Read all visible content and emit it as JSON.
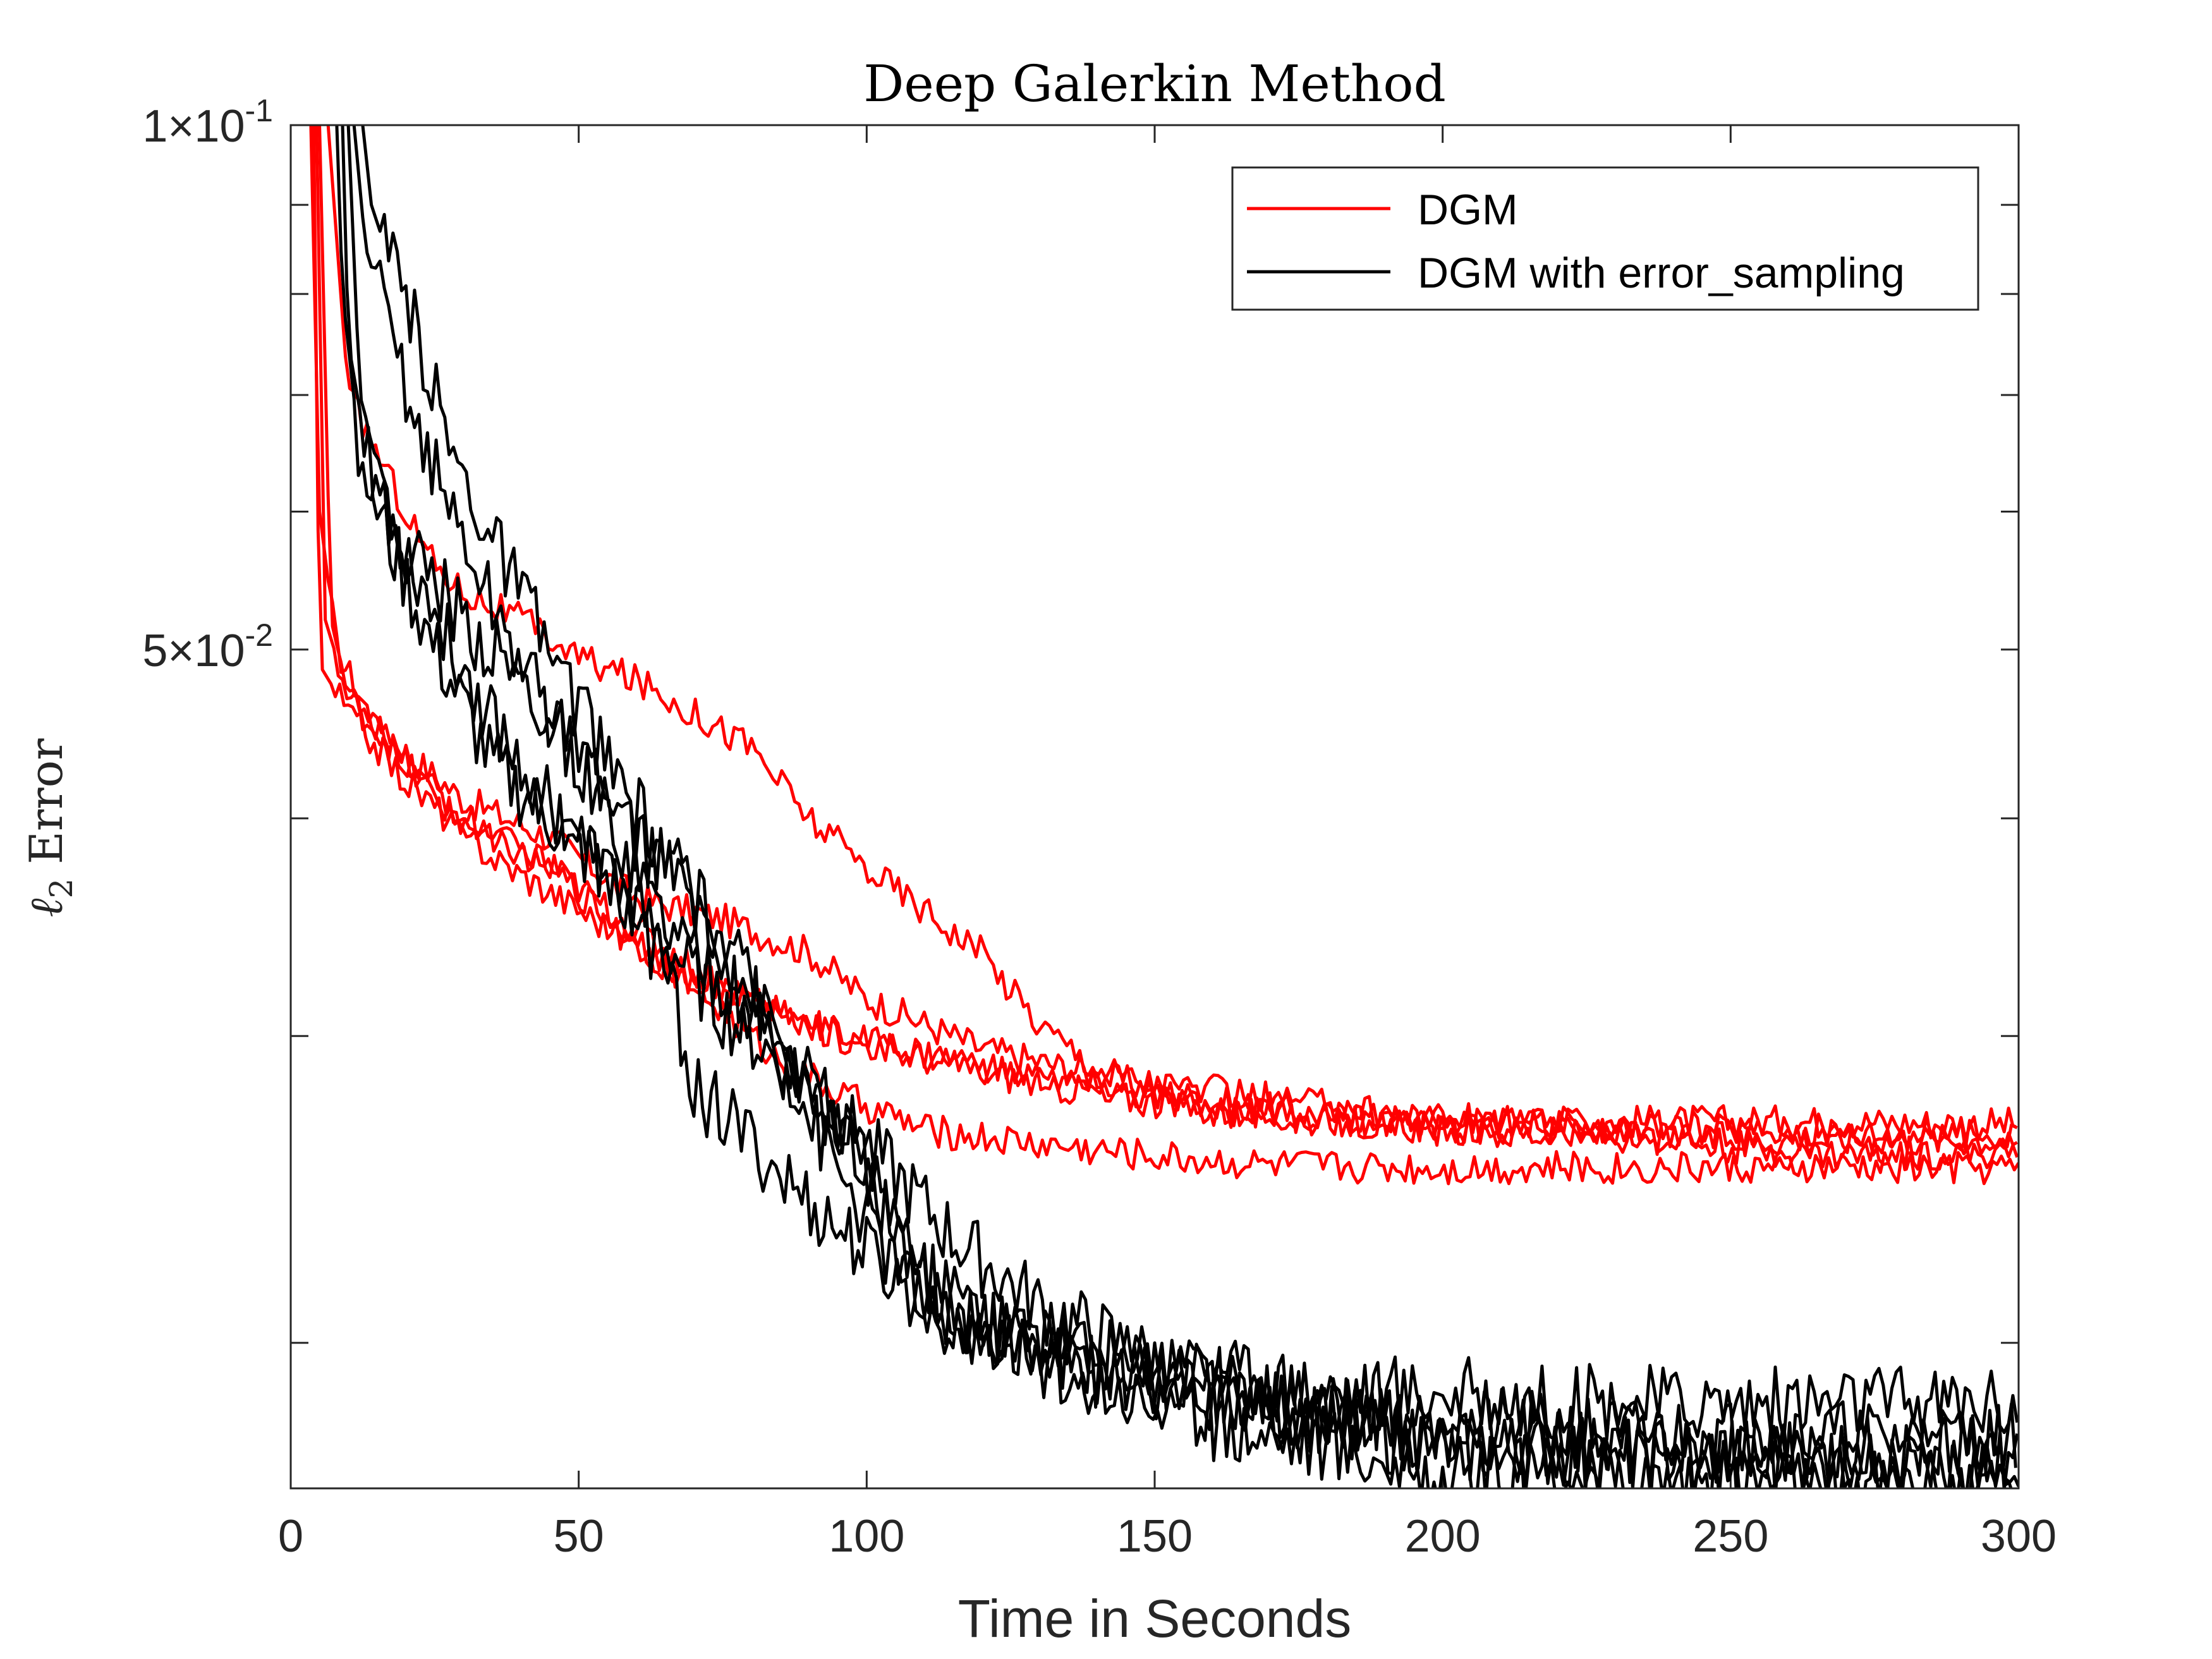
{
  "chart_data": {
    "type": "line",
    "title": "Deep Galerkin Method",
    "xlabel": "Time in Seconds",
    "ylabel_symbol": "ℓ",
    "ylabel_subscript": "2",
    "ylabel_word": "Error",
    "xlim": [
      0,
      300
    ],
    "ylim": [
      0.0165,
      0.1
    ],
    "yscale": "log",
    "xticks": [
      0,
      50,
      100,
      150,
      200,
      250,
      300
    ],
    "xtick_labels": [
      "0",
      "50",
      "100",
      "150",
      "200",
      "250",
      "300"
    ],
    "yticks_labeled": [
      {
        "value": 0.1,
        "mantissa": "1",
        "times": "×",
        "base": "10",
        "exp": "-1"
      },
      {
        "value": 0.05,
        "mantissa": "5",
        "times": "×",
        "base": "10",
        "exp": "-2"
      }
    ],
    "yticks_minor": [
      0.09,
      0.08,
      0.07,
      0.06,
      0.04,
      0.03,
      0.02
    ],
    "grid": false,
    "legend": {
      "position": "top-right",
      "entries": [
        {
          "label": "DGM",
          "color": "#ff0000"
        },
        {
          "label": "DGM with error_sampling",
          "color": "#000000"
        }
      ]
    },
    "series": [
      {
        "group": "DGM",
        "color": "#ff0000",
        "points": [
          [
            3.5,
            0.1
          ],
          [
            5,
            0.06
          ],
          [
            8,
            0.05
          ],
          [
            15,
            0.045
          ],
          [
            30,
            0.041
          ],
          [
            45,
            0.039
          ],
          [
            60,
            0.036
          ],
          [
            75,
            0.035
          ],
          [
            90,
            0.0335
          ],
          [
            100,
            0.0315
          ],
          [
            120,
            0.0295
          ],
          [
            140,
            0.0285
          ],
          [
            160,
            0.0275
          ],
          [
            180,
            0.027
          ],
          [
            200,
            0.0268
          ],
          [
            220,
            0.0268
          ],
          [
            260,
            0.0268
          ],
          [
            300,
            0.0267
          ]
        ]
      },
      {
        "group": "DGM",
        "color": "#ff0000",
        "points": [
          [
            4.5,
            0.1
          ],
          [
            6,
            0.052
          ],
          [
            10,
            0.047
          ],
          [
            20,
            0.043
          ],
          [
            30,
            0.04
          ],
          [
            45,
            0.0375
          ],
          [
            60,
            0.034
          ],
          [
            75,
            0.031
          ],
          [
            85,
            0.029
          ],
          [
            95,
            0.0278
          ],
          [
            110,
            0.0265
          ],
          [
            130,
            0.026
          ],
          [
            150,
            0.0256
          ],
          [
            170,
            0.0253
          ],
          [
            200,
            0.0252
          ],
          [
            240,
            0.0252
          ],
          [
            300,
            0.0252
          ]
        ]
      },
      {
        "group": "DGM",
        "color": "#ff0000",
        "points": [
          [
            4,
            0.1
          ],
          [
            5,
            0.049
          ],
          [
            10,
            0.046
          ],
          [
            20,
            0.042
          ],
          [
            35,
            0.038
          ],
          [
            50,
            0.0355
          ],
          [
            65,
            0.033
          ],
          [
            80,
            0.0315
          ],
          [
            95,
            0.03
          ],
          [
            110,
            0.0292
          ],
          [
            130,
            0.0282
          ],
          [
            150,
            0.0275
          ],
          [
            170,
            0.027
          ],
          [
            200,
            0.0265
          ],
          [
            240,
            0.0262
          ],
          [
            300,
            0.0262
          ]
        ]
      },
      {
        "group": "DGM",
        "color": "#ff0000",
        "points": [
          [
            5,
            0.1
          ],
          [
            7,
            0.052
          ],
          [
            10,
            0.047
          ],
          [
            20,
            0.043
          ],
          [
            30,
            0.0395
          ],
          [
            45,
            0.0375
          ],
          [
            60,
            0.0345
          ],
          [
            75,
            0.032
          ],
          [
            90,
            0.0305
          ],
          [
            100,
            0.0298
          ],
          [
            120,
            0.0288
          ],
          [
            140,
            0.028
          ],
          [
            160,
            0.0272
          ],
          [
            180,
            0.0269
          ],
          [
            200,
            0.0265
          ],
          [
            220,
            0.0266
          ],
          [
            260,
            0.0257
          ],
          [
            300,
            0.0257
          ]
        ]
      },
      {
        "group": "DGM",
        "color": "#ff0000",
        "points": [
          [
            6.5,
            0.1
          ],
          [
            10,
            0.07
          ],
          [
            15,
            0.065
          ],
          [
            20,
            0.06
          ],
          [
            25,
            0.056
          ],
          [
            30,
            0.054
          ],
          [
            40,
            0.052
          ],
          [
            50,
            0.0495
          ],
          [
            60,
            0.048
          ],
          [
            70,
            0.046
          ],
          [
            80,
            0.044
          ],
          [
            90,
            0.04
          ],
          [
            100,
            0.0375
          ],
          [
            110,
            0.0355
          ],
          [
            120,
            0.0335
          ],
          [
            130,
            0.0305
          ],
          [
            140,
            0.0288
          ],
          [
            150,
            0.0282
          ],
          [
            170,
            0.0276
          ],
          [
            200,
            0.0269
          ],
          [
            220,
            0.0267
          ],
          [
            260,
            0.0265
          ],
          [
            300,
            0.0263
          ]
        ]
      },
      {
        "group": "DGM with error_sampling",
        "color": "#000000",
        "points": [
          [
            8,
            0.1
          ],
          [
            9,
            0.08
          ],
          [
            12,
            0.065
          ],
          [
            18,
            0.058
          ],
          [
            25,
            0.055
          ],
          [
            30,
            0.052
          ],
          [
            40,
            0.048
          ],
          [
            50,
            0.043
          ],
          [
            60,
            0.039
          ],
          [
            70,
            0.036
          ],
          [
            80,
            0.032
          ],
          [
            90,
            0.027
          ],
          [
            100,
            0.0235
          ],
          [
            110,
            0.021
          ],
          [
            120,
            0.0205
          ],
          [
            140,
            0.0198
          ],
          [
            160,
            0.0193
          ],
          [
            180,
            0.0188
          ],
          [
            200,
            0.0187
          ],
          [
            220,
            0.0185
          ],
          [
            250,
            0.0185
          ],
          [
            300,
            0.0185
          ]
        ]
      },
      {
        "group": "DGM with error_sampling",
        "color": "#000000",
        "points": [
          [
            9,
            0.1
          ],
          [
            10,
            0.075
          ],
          [
            15,
            0.06
          ],
          [
            25,
            0.05
          ],
          [
            35,
            0.043
          ],
          [
            45,
            0.04
          ],
          [
            55,
            0.037
          ],
          [
            65,
            0.034
          ],
          [
            75,
            0.031
          ],
          [
            85,
            0.029
          ],
          [
            100,
            0.026
          ],
          [
            115,
            0.023
          ],
          [
            130,
            0.021
          ],
          [
            150,
            0.0195
          ],
          [
            170,
            0.0185
          ],
          [
            185,
            0.0178
          ],
          [
            200,
            0.0174
          ],
          [
            230,
            0.0173
          ],
          [
            270,
            0.0173
          ],
          [
            300,
            0.0173
          ]
        ]
      },
      {
        "group": "DGM with error_sampling",
        "color": "#000000",
        "points": [
          [
            10,
            0.1
          ],
          [
            12,
            0.07
          ],
          [
            18,
            0.059
          ],
          [
            28,
            0.05
          ],
          [
            40,
            0.043
          ],
          [
            55,
            0.037
          ],
          [
            65,
            0.033
          ],
          [
            70,
            0.028
          ],
          [
            80,
            0.026
          ],
          [
            90,
            0.024
          ],
          [
            100,
            0.0225
          ],
          [
            110,
            0.021
          ],
          [
            130,
            0.0195
          ],
          [
            150,
            0.019
          ],
          [
            175,
            0.0185
          ],
          [
            200,
            0.018
          ],
          [
            220,
            0.0178
          ],
          [
            250,
            0.0177
          ],
          [
            300,
            0.0176
          ]
        ]
      },
      {
        "group": "DGM with error_sampling",
        "color": "#000000",
        "points": [
          [
            11,
            0.1
          ],
          [
            13,
            0.085
          ],
          [
            18,
            0.075
          ],
          [
            22,
            0.067
          ],
          [
            28,
            0.06
          ],
          [
            35,
            0.053
          ],
          [
            45,
            0.046
          ],
          [
            55,
            0.04
          ],
          [
            65,
            0.035
          ],
          [
            80,
            0.031
          ],
          [
            95,
            0.027
          ],
          [
            110,
            0.0215
          ],
          [
            120,
            0.02
          ],
          [
            135,
            0.0195
          ],
          [
            150,
            0.019
          ],
          [
            170,
            0.0182
          ],
          [
            190,
            0.0178
          ],
          [
            210,
            0.0175
          ],
          [
            240,
            0.0172
          ],
          [
            270,
            0.0171
          ],
          [
            300,
            0.0171
          ]
        ]
      },
      {
        "group": "DGM with error_sampling",
        "color": "#000000",
        "points": [
          [
            12.5,
            0.1
          ],
          [
            14,
            0.09
          ],
          [
            18,
            0.082
          ],
          [
            22,
            0.076
          ],
          [
            28,
            0.065
          ],
          [
            35,
            0.058
          ],
          [
            45,
            0.05
          ],
          [
            55,
            0.043
          ],
          [
            70,
            0.036
          ],
          [
            85,
            0.03
          ],
          [
            100,
            0.025
          ],
          [
            110,
            0.022
          ],
          [
            125,
            0.0205
          ],
          [
            140,
            0.019
          ],
          [
            160,
            0.018
          ],
          [
            180,
            0.0175
          ],
          [
            200,
            0.0168
          ],
          [
            230,
            0.0168
          ],
          [
            270,
            0.0167
          ],
          [
            300,
            0.0167
          ]
        ]
      }
    ]
  }
}
